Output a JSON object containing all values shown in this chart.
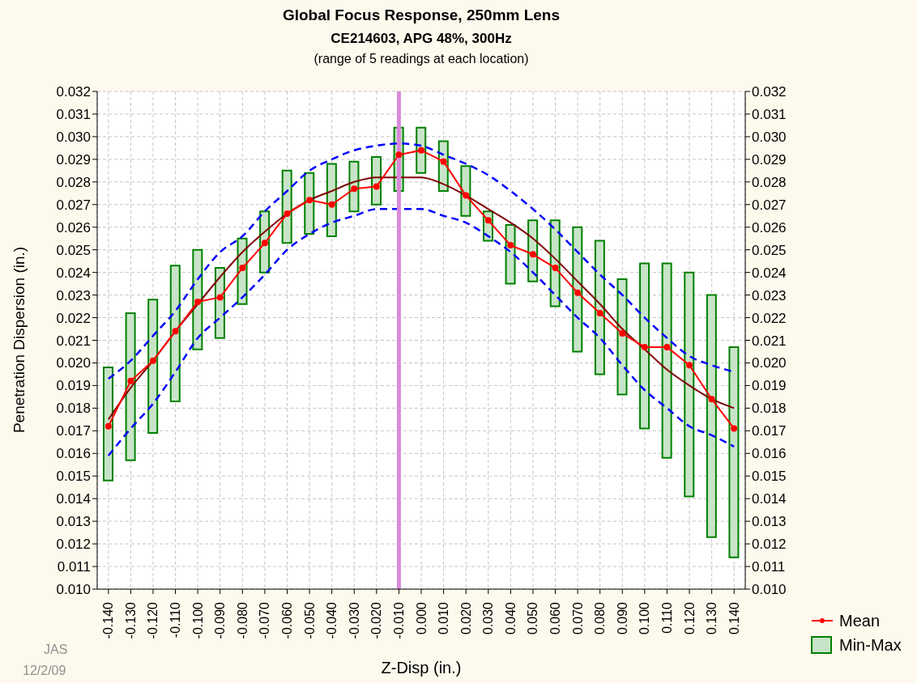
{
  "chart_data": {
    "type": "bar",
    "title": "Global Focus Response, 250mm Lens",
    "subtitle": "CE214603, APG 48%, 300Hz",
    "annotations": [
      "(range of 5 readings at each location)",
      "JAS",
      "12/2/09"
    ],
    "xlabel": "Z-Disp (in.)",
    "ylabel": "Penetration Dispersion (in.)",
    "categories": [
      "-0.140",
      "-0.130",
      "-0.120",
      "-0.110",
      "-0.100",
      "-0.090",
      "-0.080",
      "-0.070",
      "-0.060",
      "-0.050",
      "-0.040",
      "-0.030",
      "-0.020",
      "-0.010",
      "0.000",
      "0.010",
      "0.020",
      "0.030",
      "0.040",
      "0.050",
      "0.060",
      "0.070",
      "0.080",
      "0.090",
      "0.100",
      "0.110",
      "0.120",
      "0.130",
      "0.140"
    ],
    "series": [
      {
        "name": "Min-Max",
        "color": "#c8e4c8",
        "base": [
          0.0148,
          0.0157,
          0.0169,
          0.0183,
          0.0206,
          0.0211,
          0.0226,
          0.024,
          0.0253,
          0.0257,
          0.0256,
          0.0267,
          0.027,
          0.0276,
          0.0284,
          0.0276,
          0.0265,
          0.0254,
          0.0235,
          0.0236,
          0.0225,
          0.0205,
          0.0195,
          0.0186,
          0.0171,
          0.0158,
          0.0141,
          0.0123,
          0.0114
        ],
        "values": [
          0.005,
          0.0065,
          0.0059,
          0.006,
          0.0044,
          0.0031,
          0.0029,
          0.0027,
          0.0032,
          0.0027,
          0.0032,
          0.0022,
          0.0021,
          0.0028,
          0.002,
          0.0022,
          0.0022,
          0.0013,
          0.0026,
          0.0027,
          0.0038,
          0.0055,
          0.0059,
          0.0051,
          0.0073,
          0.0086,
          0.0099,
          0.0107,
          0.0093
        ]
      },
      {
        "type": "line",
        "color": "#0000ff",
        "line_style": "dashed",
        "marker": "none",
        "values": [
          0.0193,
          0.0201,
          0.0212,
          0.0223,
          0.0237,
          0.0249,
          0.0256,
          0.0267,
          0.0276,
          0.0285,
          0.029,
          0.0294,
          0.0296,
          0.0297,
          0.0296,
          0.0292,
          0.0288,
          0.0283,
          0.0276,
          0.0268,
          0.0259,
          0.0249,
          0.0239,
          0.023,
          0.022,
          0.0211,
          0.0203,
          0.0199,
          0.0196
        ]
      },
      {
        "type": "line",
        "color": "#0000ff",
        "line_style": "dashed",
        "marker": "none",
        "values": [
          0.0159,
          0.0171,
          0.0182,
          0.0196,
          0.0211,
          0.022,
          0.0229,
          0.0239,
          0.025,
          0.0257,
          0.0262,
          0.0265,
          0.0268,
          0.0268,
          0.0268,
          0.0265,
          0.0262,
          0.0256,
          0.0249,
          0.024,
          0.023,
          0.022,
          0.0211,
          0.0199,
          0.0188,
          0.018,
          0.0172,
          0.0168,
          0.0163
        ]
      },
      {
        "type": "line",
        "color": "#800000",
        "line_style": "solid",
        "marker": "none",
        "values": [
          0.0175,
          0.0189,
          0.0201,
          0.0214,
          0.0226,
          0.0238,
          0.0249,
          0.0258,
          0.0266,
          0.0272,
          0.0276,
          0.028,
          0.0282,
          0.0282,
          0.0282,
          0.0279,
          0.0274,
          0.0268,
          0.0262,
          0.0255,
          0.0246,
          0.0236,
          0.0226,
          0.0215,
          0.0206,
          0.0197,
          0.019,
          0.0184,
          0.018
        ]
      },
      {
        "name": "Mean",
        "type": "line",
        "color": "#ff0000",
        "line_style": "solid",
        "marker": "circle",
        "values": [
          0.0172,
          0.0192,
          0.0201,
          0.0214,
          0.0227,
          0.0229,
          0.0242,
          0.0253,
          0.0266,
          0.0272,
          0.027,
          0.0277,
          0.0278,
          0.0292,
          0.0294,
          0.0289,
          0.0274,
          0.0263,
          0.0252,
          0.0248,
          0.0242,
          0.0231,
          0.0222,
          0.0213,
          0.0207,
          0.0207,
          0.0199,
          0.0184,
          0.0171
        ]
      }
    ],
    "ylim": [
      0.01,
      0.032
    ],
    "yticks": [
      {
        "value": 0.01,
        "label": "0.010"
      },
      0.011,
      0.012,
      0.013,
      0.014,
      0.015,
      0.016,
      0.017,
      0.018,
      0.019,
      {
        "value": 0.02,
        "label": "0.020"
      },
      0.021,
      0.022,
      0.023,
      0.024,
      0.025,
      0.026,
      0.027,
      0.028,
      0.029,
      {
        "value": 0.03,
        "label": "0.030"
      },
      0.031,
      0.032
    ],
    "y2lim": [
      0.01,
      0.032
    ],
    "y2ticks": [
      {
        "value": 0.01,
        "label": "0.010"
      },
      0.011,
      0.012,
      0.013,
      0.014,
      0.015,
      0.016,
      0.017,
      0.018,
      0.019,
      {
        "value": 0.02,
        "label": "0.020"
      },
      0.021,
      0.022,
      0.023,
      0.024,
      0.025,
      0.026,
      0.027,
      0.028,
      0.029,
      {
        "value": 0.03,
        "label": "0.030"
      },
      0.031,
      0.032
    ],
    "ref_lines": [
      {
        "axis": "x",
        "value": "-0.010",
        "color": "#d98ad9"
      }
    ],
    "grid": true,
    "legend": "bottom right"
  }
}
